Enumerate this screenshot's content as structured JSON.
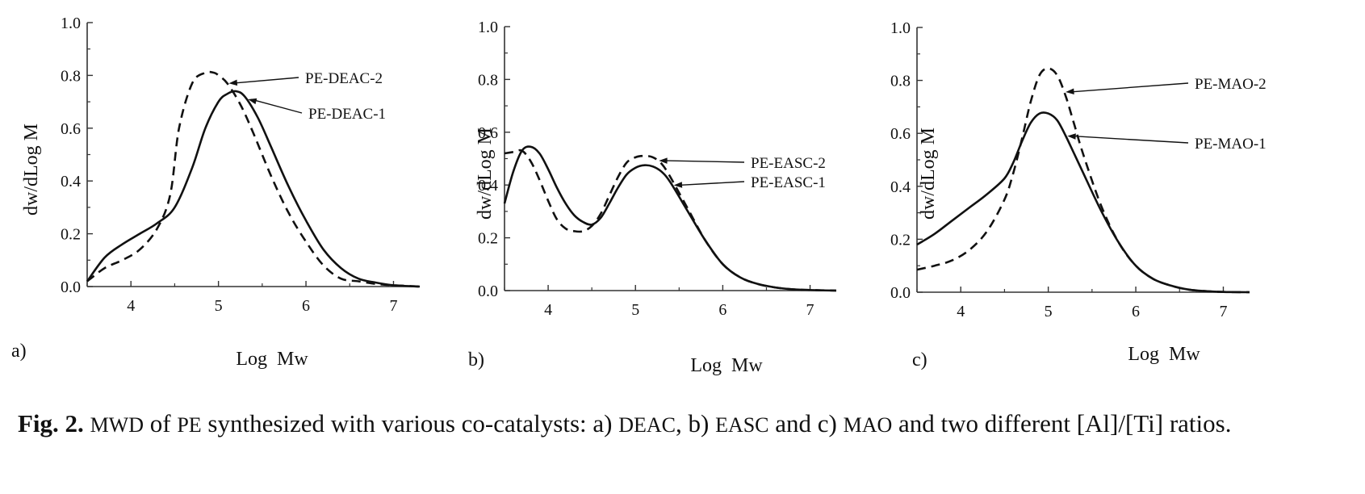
{
  "chart_data": [
    {
      "type": "line",
      "panel_label": "a)",
      "xlabel": "Log  Mw",
      "ylabel": "dw/dLog M",
      "xlim": [
        3.5,
        7.3
      ],
      "ylim": [
        0.0,
        1.0
      ],
      "xticks": [
        "4",
        "5",
        "6",
        "7"
      ],
      "yticks": [
        "0.0",
        "0.2",
        "0.4",
        "0.6",
        "0.8",
        "1.0"
      ],
      "series": [
        {
          "name": "PE-DEAC-2",
          "style": "dashed",
          "x": [
            3.5,
            3.7,
            3.9,
            4.1,
            4.3,
            4.45,
            4.55,
            4.7,
            4.85,
            4.95,
            5.0,
            5.1,
            5.25,
            5.4,
            5.6,
            5.8,
            6.0,
            6.2,
            6.4,
            6.6,
            6.8,
            7.0,
            7.3
          ],
          "y": [
            0.02,
            0.07,
            0.1,
            0.14,
            0.22,
            0.35,
            0.6,
            0.77,
            0.81,
            0.81,
            0.8,
            0.77,
            0.69,
            0.58,
            0.42,
            0.28,
            0.17,
            0.08,
            0.03,
            0.02,
            0.01,
            0.005,
            0.0
          ]
        },
        {
          "name": "PE-DEAC-1",
          "style": "solid",
          "x": [
            3.5,
            3.7,
            3.9,
            4.1,
            4.3,
            4.5,
            4.7,
            4.85,
            5.0,
            5.1,
            5.2,
            5.3,
            5.45,
            5.6,
            5.8,
            6.0,
            6.2,
            6.4,
            6.6,
            6.8,
            7.0,
            7.3
          ],
          "y": [
            0.02,
            0.11,
            0.16,
            0.2,
            0.24,
            0.3,
            0.45,
            0.6,
            0.7,
            0.73,
            0.74,
            0.72,
            0.64,
            0.53,
            0.38,
            0.25,
            0.14,
            0.07,
            0.03,
            0.015,
            0.005,
            0.0
          ]
        }
      ],
      "annotations": [
        "PE-DEAC-2",
        "PE-DEAC-1"
      ]
    },
    {
      "type": "line",
      "panel_label": "b)",
      "xlabel": "Log  Mw",
      "ylabel": "dw/dLog M",
      "xlim": [
        3.5,
        7.3
      ],
      "ylim": [
        0.0,
        1.0
      ],
      "xticks": [
        "4",
        "5",
        "6",
        "7"
      ],
      "yticks": [
        "0.0",
        "0.2",
        "0.4",
        "0.6",
        "0.8",
        "1.0"
      ],
      "series": [
        {
          "name": "PE-EASC-2",
          "style": "dashed",
          "x": [
            3.5,
            3.6,
            3.7,
            3.8,
            3.9,
            4.0,
            4.1,
            4.2,
            4.3,
            4.4,
            4.5,
            4.6,
            4.7,
            4.8,
            4.9,
            5.0,
            5.1,
            5.2,
            5.3,
            5.4,
            5.6,
            5.8,
            6.0,
            6.2,
            6.4,
            6.6,
            6.8,
            7.0,
            7.3
          ],
          "y": [
            0.52,
            0.525,
            0.53,
            0.49,
            0.42,
            0.34,
            0.27,
            0.235,
            0.225,
            0.225,
            0.245,
            0.29,
            0.36,
            0.43,
            0.485,
            0.505,
            0.51,
            0.505,
            0.48,
            0.43,
            0.31,
            0.19,
            0.1,
            0.05,
            0.025,
            0.012,
            0.005,
            0.002,
            0.0
          ]
        },
        {
          "name": "PE-EASC-1",
          "style": "solid",
          "x": [
            3.5,
            3.6,
            3.7,
            3.8,
            3.9,
            4.0,
            4.1,
            4.2,
            4.3,
            4.4,
            4.5,
            4.6,
            4.7,
            4.8,
            4.9,
            5.0,
            5.1,
            5.2,
            5.3,
            5.4,
            5.6,
            5.8,
            6.0,
            6.2,
            6.4,
            6.6,
            6.8,
            7.0,
            7.3
          ],
          "y": [
            0.33,
            0.45,
            0.53,
            0.545,
            0.52,
            0.46,
            0.39,
            0.33,
            0.285,
            0.26,
            0.25,
            0.275,
            0.33,
            0.39,
            0.44,
            0.465,
            0.475,
            0.47,
            0.45,
            0.41,
            0.3,
            0.19,
            0.1,
            0.05,
            0.025,
            0.012,
            0.005,
            0.002,
            0.0
          ]
        }
      ],
      "annotations": [
        "PE-EASC-2",
        "PE-EASC-1"
      ]
    },
    {
      "type": "line",
      "panel_label": "c)",
      "xlabel": "Log  Mw",
      "ylabel": "dw/dLog M",
      "xlim": [
        3.5,
        7.3
      ],
      "ylim": [
        0.0,
        1.0
      ],
      "xticks": [
        "4",
        "5",
        "6",
        "7"
      ],
      "yticks": [
        "0.0",
        "0.2",
        "0.4",
        "0.6",
        "0.8",
        "1.0"
      ],
      "series": [
        {
          "name": "PE-MAO-2",
          "style": "dashed",
          "x": [
            3.5,
            3.7,
            3.9,
            4.1,
            4.3,
            4.5,
            4.6,
            4.7,
            4.8,
            4.9,
            5.0,
            5.1,
            5.2,
            5.3,
            5.4,
            5.6,
            5.8,
            6.0,
            6.2,
            6.4,
            6.6,
            6.8,
            7.0,
            7.3
          ],
          "y": [
            0.085,
            0.1,
            0.12,
            0.16,
            0.23,
            0.35,
            0.45,
            0.58,
            0.72,
            0.82,
            0.845,
            0.82,
            0.74,
            0.63,
            0.52,
            0.33,
            0.19,
            0.1,
            0.05,
            0.025,
            0.01,
            0.004,
            0.001,
            0.0
          ]
        },
        {
          "name": "PE-MAO-1",
          "style": "solid",
          "x": [
            3.5,
            3.7,
            3.9,
            4.1,
            4.3,
            4.5,
            4.6,
            4.7,
            4.8,
            4.9,
            5.0,
            5.1,
            5.2,
            5.3,
            5.4,
            5.6,
            5.8,
            6.0,
            6.2,
            6.4,
            6.6,
            6.8,
            7.0,
            7.3
          ],
          "y": [
            0.18,
            0.22,
            0.27,
            0.32,
            0.37,
            0.43,
            0.49,
            0.57,
            0.64,
            0.675,
            0.675,
            0.65,
            0.59,
            0.52,
            0.45,
            0.31,
            0.19,
            0.1,
            0.05,
            0.025,
            0.01,
            0.004,
            0.001,
            0.0
          ]
        }
      ],
      "annotations": [
        "PE-MAO-2",
        "PE-MAO-1"
      ]
    }
  ],
  "caption": {
    "fig_label": "Fig. 2.",
    "parts": [
      " ",
      "MWD",
      " of ",
      "PE",
      " synthesized with various co-catalysts: a) ",
      "DEAC",
      ", b) ",
      "EASC",
      " and c) ",
      "MAO",
      " and two different [Al]/[Ti] ratios."
    ]
  }
}
